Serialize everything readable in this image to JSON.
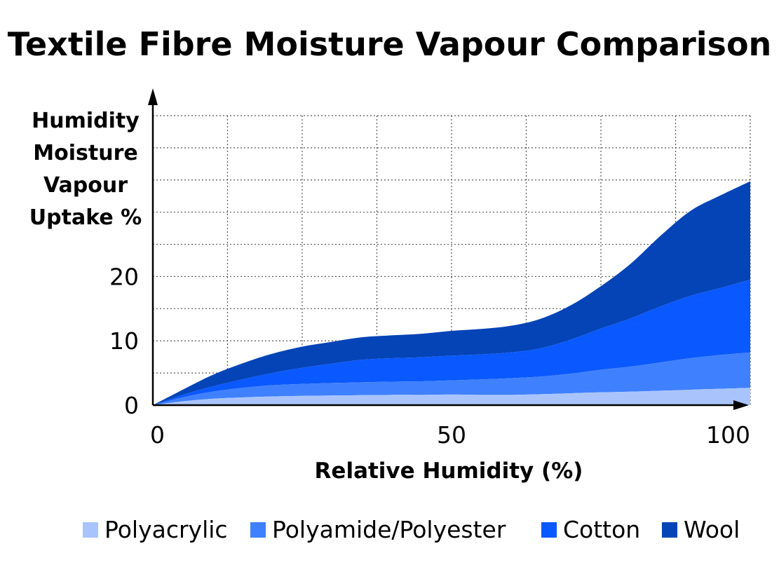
{
  "chart_data": {
    "type": "area",
    "stacked": true,
    "title": "Textile Fibre Moisture Vapour Comparison",
    "xlabel": "Relative Humidity (%)",
    "ylabel": "Humidity Moisture Vapour Uptake %",
    "ylabel_lines": [
      "Humidity",
      "Moisture",
      "Vapour",
      "Uptake %"
    ],
    "x_ticks": [
      0,
      50,
      100
    ],
    "y_ticks": [
      0,
      10,
      20
    ],
    "xlim": [
      0,
      100
    ],
    "ylim": [
      0,
      45
    ],
    "grid": true,
    "legend_position": "bottom",
    "x": [
      0,
      5,
      10,
      15,
      20,
      25,
      30,
      35,
      40,
      45,
      50,
      55,
      60,
      65,
      70,
      75,
      80,
      85,
      90,
      95,
      100
    ],
    "series": [
      {
        "name": "Polyacrylic",
        "color": "#a9c4fd",
        "values": [
          0,
          0.6,
          1.0,
          1.2,
          1.35,
          1.45,
          1.5,
          1.55,
          1.6,
          1.6,
          1.65,
          1.6,
          1.6,
          1.7,
          1.85,
          2.0,
          2.1,
          2.25,
          2.4,
          2.55,
          2.7
        ]
      },
      {
        "name": "Polyamide/Polyester",
        "color": "#3f80ff",
        "values": [
          0,
          0.6,
          1.1,
          1.5,
          1.75,
          1.85,
          1.95,
          2.0,
          2.05,
          2.1,
          2.2,
          2.4,
          2.6,
          2.75,
          3.05,
          3.5,
          3.9,
          4.4,
          4.9,
          5.25,
          5.5
        ]
      },
      {
        "name": "Cotton",
        "color": "#0a58ff",
        "values": [
          0,
          0.4,
          0.8,
          1.3,
          1.9,
          2.5,
          3.0,
          3.5,
          3.65,
          3.75,
          3.85,
          3.9,
          4.0,
          4.4,
          5.3,
          6.4,
          7.5,
          8.7,
          9.7,
          10.4,
          11.3
        ]
      },
      {
        "name": "Wool",
        "color": "#0444b6",
        "values": [
          0,
          0.8,
          1.8,
          2.5,
          3.0,
          3.3,
          3.4,
          3.5,
          3.55,
          3.65,
          3.85,
          3.95,
          4.15,
          4.6,
          5.35,
          6.6,
          8.5,
          11.0,
          13.2,
          14.4,
          15.3
        ]
      }
    ]
  }
}
